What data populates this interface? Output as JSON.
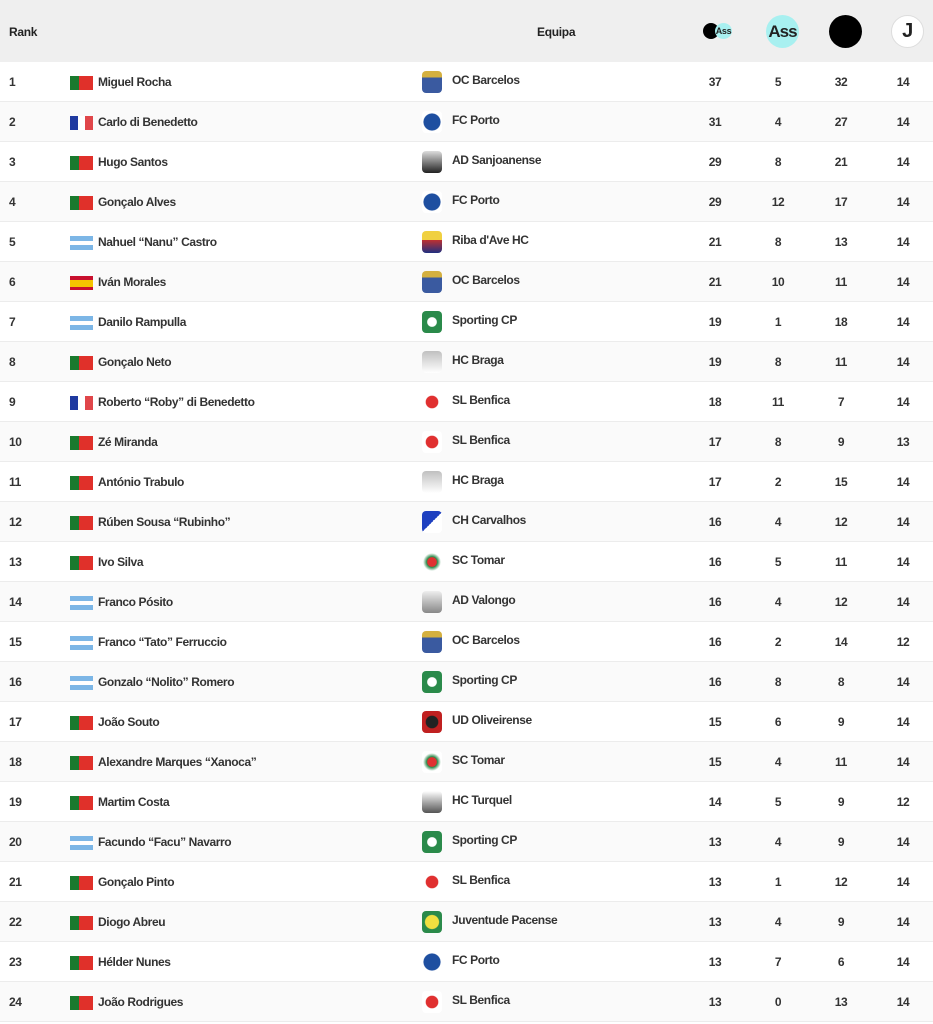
{
  "header": {
    "rank": "Rank",
    "team": "Equipa",
    "col_points_icon": "goal-plus-assist-icon",
    "col_points_text": "Ass",
    "col_assists": "Ass",
    "col_goals_icon": "goal-ball-icon",
    "col_games": "J"
  },
  "colors": {
    "accent": "#a8f0f0",
    "header_bg": "#efefef"
  },
  "rows": [
    [
      "1",
      "pt",
      "Miguel Rocha",
      "OC Barcelos",
      "37",
      "5",
      "32",
      "14"
    ],
    [
      "2",
      "fr",
      "Carlo di Benedetto",
      "FC Porto",
      "31",
      "4",
      "27",
      "14"
    ],
    [
      "3",
      "pt",
      "Hugo Santos",
      "AD Sanjoanense",
      "29",
      "8",
      "21",
      "14"
    ],
    [
      "4",
      "pt",
      "Gonçalo Alves",
      "FC Porto",
      "29",
      "12",
      "17",
      "14"
    ],
    [
      "5",
      "ar",
      "Nahuel “Nanu” Castro",
      "Riba d'Ave HC",
      "21",
      "8",
      "13",
      "14"
    ],
    [
      "6",
      "es",
      "Iván Morales",
      "OC Barcelos",
      "21",
      "10",
      "11",
      "14"
    ],
    [
      "7",
      "ar",
      "Danilo Rampulla",
      "Sporting CP",
      "19",
      "1",
      "18",
      "14"
    ],
    [
      "8",
      "pt",
      "Gonçalo Neto",
      "HC Braga",
      "19",
      "8",
      "11",
      "14"
    ],
    [
      "9",
      "fr",
      "Roberto “Roby” di Benedetto",
      "SL Benfica",
      "18",
      "11",
      "7",
      "14"
    ],
    [
      "10",
      "pt",
      "Zé Miranda",
      "SL Benfica",
      "17",
      "8",
      "9",
      "13"
    ],
    [
      "11",
      "pt",
      "António Trabulo",
      "HC Braga",
      "17",
      "2",
      "15",
      "14"
    ],
    [
      "12",
      "pt",
      "Rúben Sousa “Rubinho”",
      "CH Carvalhos",
      "16",
      "4",
      "12",
      "14"
    ],
    [
      "13",
      "pt",
      "Ivo Silva",
      "SC Tomar",
      "16",
      "5",
      "11",
      "14"
    ],
    [
      "14",
      "ar",
      "Franco Pósito",
      "AD Valongo",
      "16",
      "4",
      "12",
      "14"
    ],
    [
      "15",
      "ar",
      "Franco “Tato” Ferruccio",
      "OC Barcelos",
      "16",
      "2",
      "14",
      "12"
    ],
    [
      "16",
      "ar",
      "Gonzalo “Nolito” Romero",
      "Sporting CP",
      "16",
      "8",
      "8",
      "14"
    ],
    [
      "17",
      "pt",
      "João Souto",
      "UD Oliveirense",
      "15",
      "6",
      "9",
      "14"
    ],
    [
      "18",
      "pt",
      "Alexandre Marques “Xanoca”",
      "SC Tomar",
      "15",
      "4",
      "11",
      "14"
    ],
    [
      "19",
      "pt",
      "Martim Costa",
      "HC Turquel",
      "14",
      "5",
      "9",
      "12"
    ],
    [
      "20",
      "ar",
      "Facundo “Facu” Navarro",
      "Sporting CP",
      "13",
      "4",
      "9",
      "14"
    ],
    [
      "21",
      "pt",
      "Gonçalo Pinto",
      "SL Benfica",
      "13",
      "1",
      "12",
      "14"
    ],
    [
      "22",
      "pt",
      "Diogo Abreu",
      "Juventude Pacense",
      "13",
      "4",
      "9",
      "14"
    ],
    [
      "23",
      "pt",
      "Hélder Nunes",
      "FC Porto",
      "13",
      "7",
      "6",
      "14"
    ],
    [
      "24",
      "pt",
      "João Rodrigues",
      "SL Benfica",
      "13",
      "0",
      "13",
      "14"
    ]
  ]
}
